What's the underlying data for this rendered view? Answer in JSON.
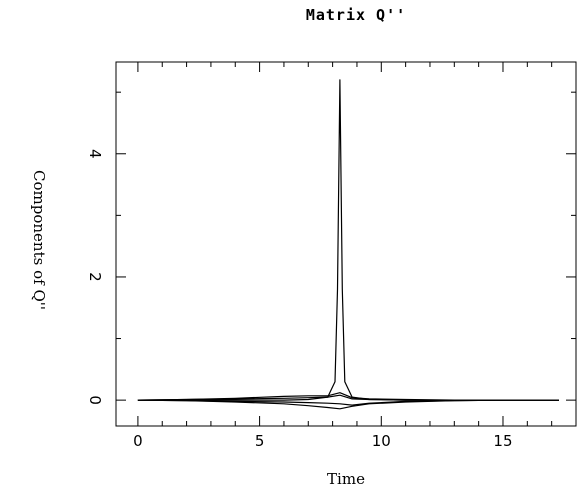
{
  "chart_data": {
    "type": "line",
    "title": "Matrix Q''",
    "xlabel": "Time",
    "ylabel": "Components of Q''",
    "xlim": [
      -0.9,
      18.0
    ],
    "ylim": [
      -0.42,
      5.49
    ],
    "x_ticks": [
      0,
      5,
      10,
      15
    ],
    "x_tick_labels": [
      "0",
      "5",
      "10",
      "15"
    ],
    "y_ticks": [
      0,
      2,
      4
    ],
    "y_tick_labels": [
      "0",
      "2",
      "4"
    ],
    "grid": false,
    "series": [
      {
        "x": [
          0,
          2,
          4,
          6,
          7,
          7.8,
          8.1,
          8.2,
          8.3,
          8.4,
          8.5,
          8.8,
          9.5,
          11,
          13,
          15,
          17.3
        ],
        "values": [
          0,
          0,
          0,
          0,
          0.01,
          0.05,
          0.3,
          1.8,
          5.2,
          1.8,
          0.3,
          0.05,
          0.01,
          0,
          0,
          0,
          0
        ]
      },
      {
        "x": [
          0,
          2,
          4,
          6,
          7,
          7.8,
          8.3,
          8.8,
          9.5,
          11,
          13,
          15,
          17.3
        ],
        "values": [
          0,
          0.01,
          0.03,
          0.06,
          0.07,
          0.07,
          0.12,
          0.04,
          0.02,
          0.01,
          0,
          0,
          0
        ]
      },
      {
        "x": [
          0,
          2,
          4,
          6,
          7,
          7.8,
          8.3,
          8.8,
          9.5,
          11,
          13,
          15,
          17.3
        ],
        "values": [
          0,
          0.01,
          0.02,
          0.03,
          0.04,
          0.05,
          0.08,
          0.02,
          0.01,
          0,
          0,
          0,
          0
        ]
      },
      {
        "x": [
          0,
          2,
          4,
          6,
          7,
          7.8,
          8.3,
          8.8,
          9.5,
          11,
          13,
          15,
          17.3
        ],
        "values": [
          0,
          -0.01,
          -0.02,
          -0.03,
          -0.04,
          -0.05,
          -0.06,
          -0.08,
          -0.05,
          -0.02,
          -0.01,
          0,
          0
        ]
      },
      {
        "x": [
          0,
          2,
          4,
          6,
          7,
          7.8,
          8.3,
          8.8,
          9.5,
          11,
          13,
          15,
          17.3
        ],
        "values": [
          0,
          -0.01,
          -0.03,
          -0.06,
          -0.09,
          -0.12,
          -0.14,
          -0.1,
          -0.06,
          -0.03,
          -0.01,
          0,
          0
        ]
      }
    ]
  }
}
